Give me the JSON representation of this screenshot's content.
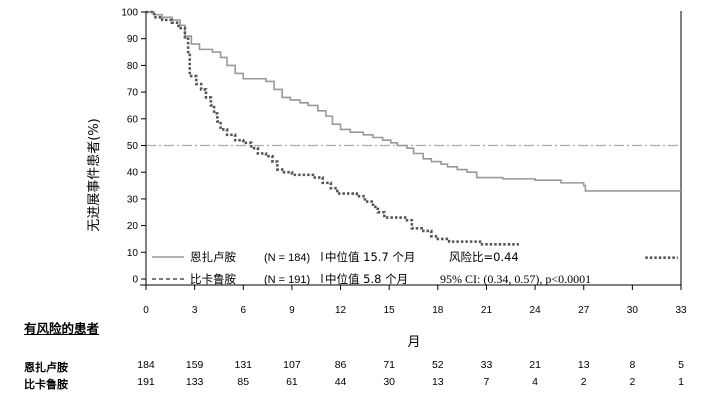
{
  "chart_data": {
    "type": "line",
    "subtype": "kaplan-meier",
    "xlabel": "月",
    "ylabel": "无进展事件患者(%)",
    "xlim": [
      0,
      33
    ],
    "ylim": [
      0,
      100
    ],
    "x_ticks": [
      0,
      3,
      6,
      9,
      12,
      15,
      18,
      21,
      24,
      27,
      30,
      33
    ],
    "y_ticks": [
      0,
      10,
      20,
      30,
      40,
      50,
      60,
      70,
      80,
      90,
      100
    ],
    "reference_line": {
      "y": 50,
      "style": "dash-dot",
      "color": "#aaaaaa"
    },
    "series": [
      {
        "name": "恩扎卢胺",
        "style": "solid",
        "color": "#999999",
        "points": [
          [
            0,
            100
          ],
          [
            0.5,
            99
          ],
          [
            1,
            98
          ],
          [
            1.6,
            97
          ],
          [
            2.1,
            95
          ],
          [
            2.4,
            91
          ],
          [
            2.8,
            88
          ],
          [
            3.3,
            86
          ],
          [
            4.1,
            85
          ],
          [
            4.6,
            83
          ],
          [
            5,
            80
          ],
          [
            5.5,
            77
          ],
          [
            6,
            75
          ],
          [
            6.5,
            75
          ],
          [
            7.4,
            74
          ],
          [
            7.9,
            71
          ],
          [
            8.4,
            68
          ],
          [
            8.9,
            67
          ],
          [
            9.5,
            66
          ],
          [
            10,
            65
          ],
          [
            10.6,
            63
          ],
          [
            11.1,
            61
          ],
          [
            11.5,
            58
          ],
          [
            12,
            56
          ],
          [
            12.6,
            55
          ],
          [
            13.4,
            54
          ],
          [
            14,
            53
          ],
          [
            14.6,
            52
          ],
          [
            15.1,
            51
          ],
          [
            15.5,
            50
          ],
          [
            16.1,
            49
          ],
          [
            16.5,
            47
          ],
          [
            17.1,
            45
          ],
          [
            17.6,
            44
          ],
          [
            18.2,
            43
          ],
          [
            18.6,
            42
          ],
          [
            19.2,
            41
          ],
          [
            19.8,
            40
          ],
          [
            20.4,
            38
          ],
          [
            21.3,
            38
          ],
          [
            22,
            37.5
          ],
          [
            23.8,
            37.5
          ],
          [
            24,
            37
          ],
          [
            25.6,
            36
          ],
          [
            27,
            35
          ],
          [
            27.1,
            33
          ],
          [
            33,
            33
          ]
        ]
      },
      {
        "name": "比卡鲁胺",
        "style": "dotted",
        "color": "#555555",
        "points": [
          [
            0,
            100
          ],
          [
            0.5,
            98
          ],
          [
            1,
            97
          ],
          [
            1.6,
            96
          ],
          [
            2,
            94
          ],
          [
            2.4,
            90
          ],
          [
            2.6,
            85
          ],
          [
            2.7,
            76
          ],
          [
            3.1,
            73
          ],
          [
            3.4,
            71
          ],
          [
            3.7,
            68
          ],
          [
            4,
            65
          ],
          [
            4.2,
            62
          ],
          [
            4.4,
            59
          ],
          [
            4.6,
            56
          ],
          [
            5,
            54
          ],
          [
            5.5,
            52
          ],
          [
            6,
            51
          ],
          [
            6.5,
            49
          ],
          [
            6.9,
            47
          ],
          [
            7.4,
            46
          ],
          [
            7.8,
            44
          ],
          [
            8.1,
            41
          ],
          [
            8.5,
            40
          ],
          [
            9,
            39
          ],
          [
            9.8,
            39
          ],
          [
            10.3,
            38
          ],
          [
            10.9,
            36
          ],
          [
            11.4,
            34
          ],
          [
            11.8,
            32
          ],
          [
            12.4,
            32
          ],
          [
            13,
            31
          ],
          [
            13.5,
            29
          ],
          [
            14,
            27
          ],
          [
            14.3,
            25
          ],
          [
            14.7,
            23
          ],
          [
            15.5,
            23
          ],
          [
            16.1,
            22
          ],
          [
            16.4,
            19
          ],
          [
            17,
            18
          ],
          [
            17.6,
            16
          ],
          [
            18,
            15
          ],
          [
            18.7,
            14
          ],
          [
            19.5,
            14
          ],
          [
            20.6,
            13
          ],
          [
            21.3,
            13
          ],
          [
            23,
            13
          ]
        ],
        "tail": [
          [
            30.8,
            8
          ],
          [
            32.8,
            8
          ]
        ]
      }
    ],
    "legend": [
      {
        "name": "恩扎卢胺",
        "n": "(N = 184)",
        "median": "中位值 15.7 个月",
        "extra": "风险比=0.44"
      },
      {
        "name": "比卡鲁胺",
        "n": "(N = 191)",
        "median": "中位值 5.8 个月",
        "extra": "95% CI: (0.34, 0.57), p<0.0001"
      }
    ]
  },
  "risk_table": {
    "title": "有风险的患者",
    "rows": [
      {
        "label": "恩扎卢胺",
        "values": [
          "184",
          "159",
          "131",
          "107",
          "86",
          "71",
          "52",
          "33",
          "21",
          "13",
          "8",
          "5"
        ]
      },
      {
        "label": "比卡鲁胺",
        "values": [
          "191",
          "133",
          "85",
          "61",
          "44",
          "30",
          "13",
          "7",
          "4",
          "2",
          "2",
          "1"
        ]
      }
    ]
  }
}
